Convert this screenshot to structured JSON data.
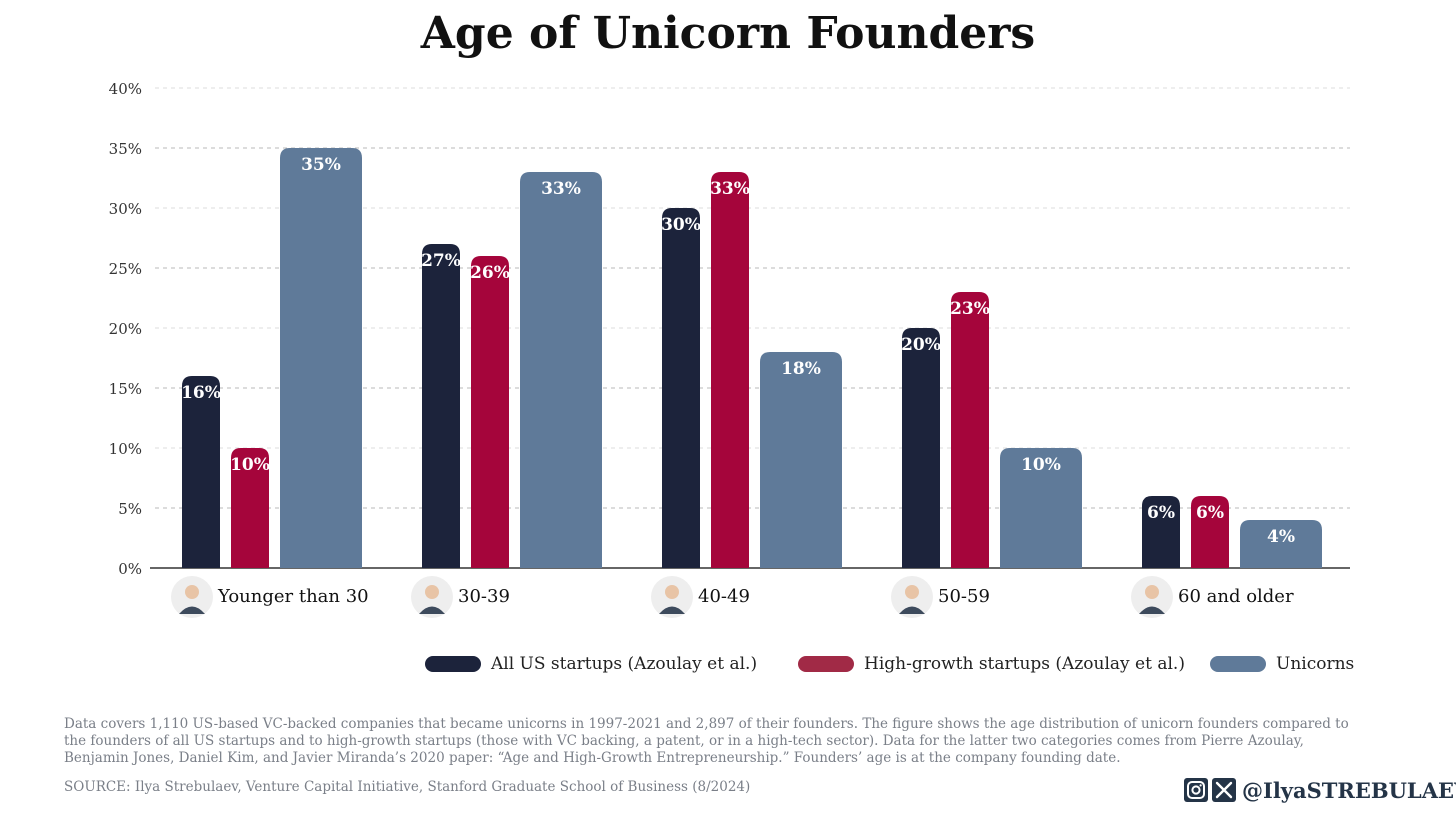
{
  "chart_data": {
    "type": "bar",
    "title": "Age of Unicorn Founders",
    "categories": [
      "Younger than 30",
      "30-39",
      "40-49",
      "50-59",
      "60 and older"
    ],
    "series": [
      {
        "name": "All US startups (Azoulay et al.)",
        "color": "#1c233b",
        "values": [
          16,
          27,
          30,
          20,
          6
        ],
        "labels": [
          "16%",
          "27%",
          "30%",
          "20%",
          "6%"
        ]
      },
      {
        "name": "High-growth startups (Azoulay et al.)",
        "color": "#a5053b",
        "values": [
          10,
          26,
          33,
          23,
          6
        ],
        "labels": [
          "10%",
          "26%",
          "33%",
          "23%",
          "6%"
        ]
      },
      {
        "name": "Unicorns",
        "color": "#5f7a99",
        "values": [
          35,
          33,
          18,
          10,
          4
        ],
        "labels": [
          "35%",
          "33%",
          "18%",
          "10%",
          "4%"
        ]
      }
    ],
    "ylim": [
      0,
      40
    ],
    "yticks": [
      0,
      5,
      10,
      15,
      20,
      25,
      30,
      35,
      40
    ],
    "ytick_labels": [
      "0%",
      "5%",
      "10%",
      "15%",
      "20%",
      "25%",
      "30%",
      "35%",
      "40%"
    ],
    "xlabel": "",
    "ylabel": "",
    "grid": true,
    "legend_position": "bottom-right"
  },
  "footnote": "Data covers 1,110 US-based VC-backed companies that became unicorns in 1997-2021 and 2,897 of their founders. The figure shows the age distribution of unicorn founders compared to the founders of all US startups and to high-growth startups (those with VC backing, a patent, or in a high-tech sector). Data for the latter two categories comes from Pierre Azoulay, Benjamin Jones, Daniel Kim, and Javier Miranda’s 2020 paper: “Age and High-Growth Entrepreneurship.” Founders’ age is at the company founding date.",
  "source": "SOURCE: Ilya Strebulaev, Venture Capital Initiative, Stanford Graduate School of Business (8/2024)",
  "social": {
    "icons": [
      "instagram-icon",
      "x-icon"
    ],
    "handle": "@IlyaSTREBULAEV"
  }
}
